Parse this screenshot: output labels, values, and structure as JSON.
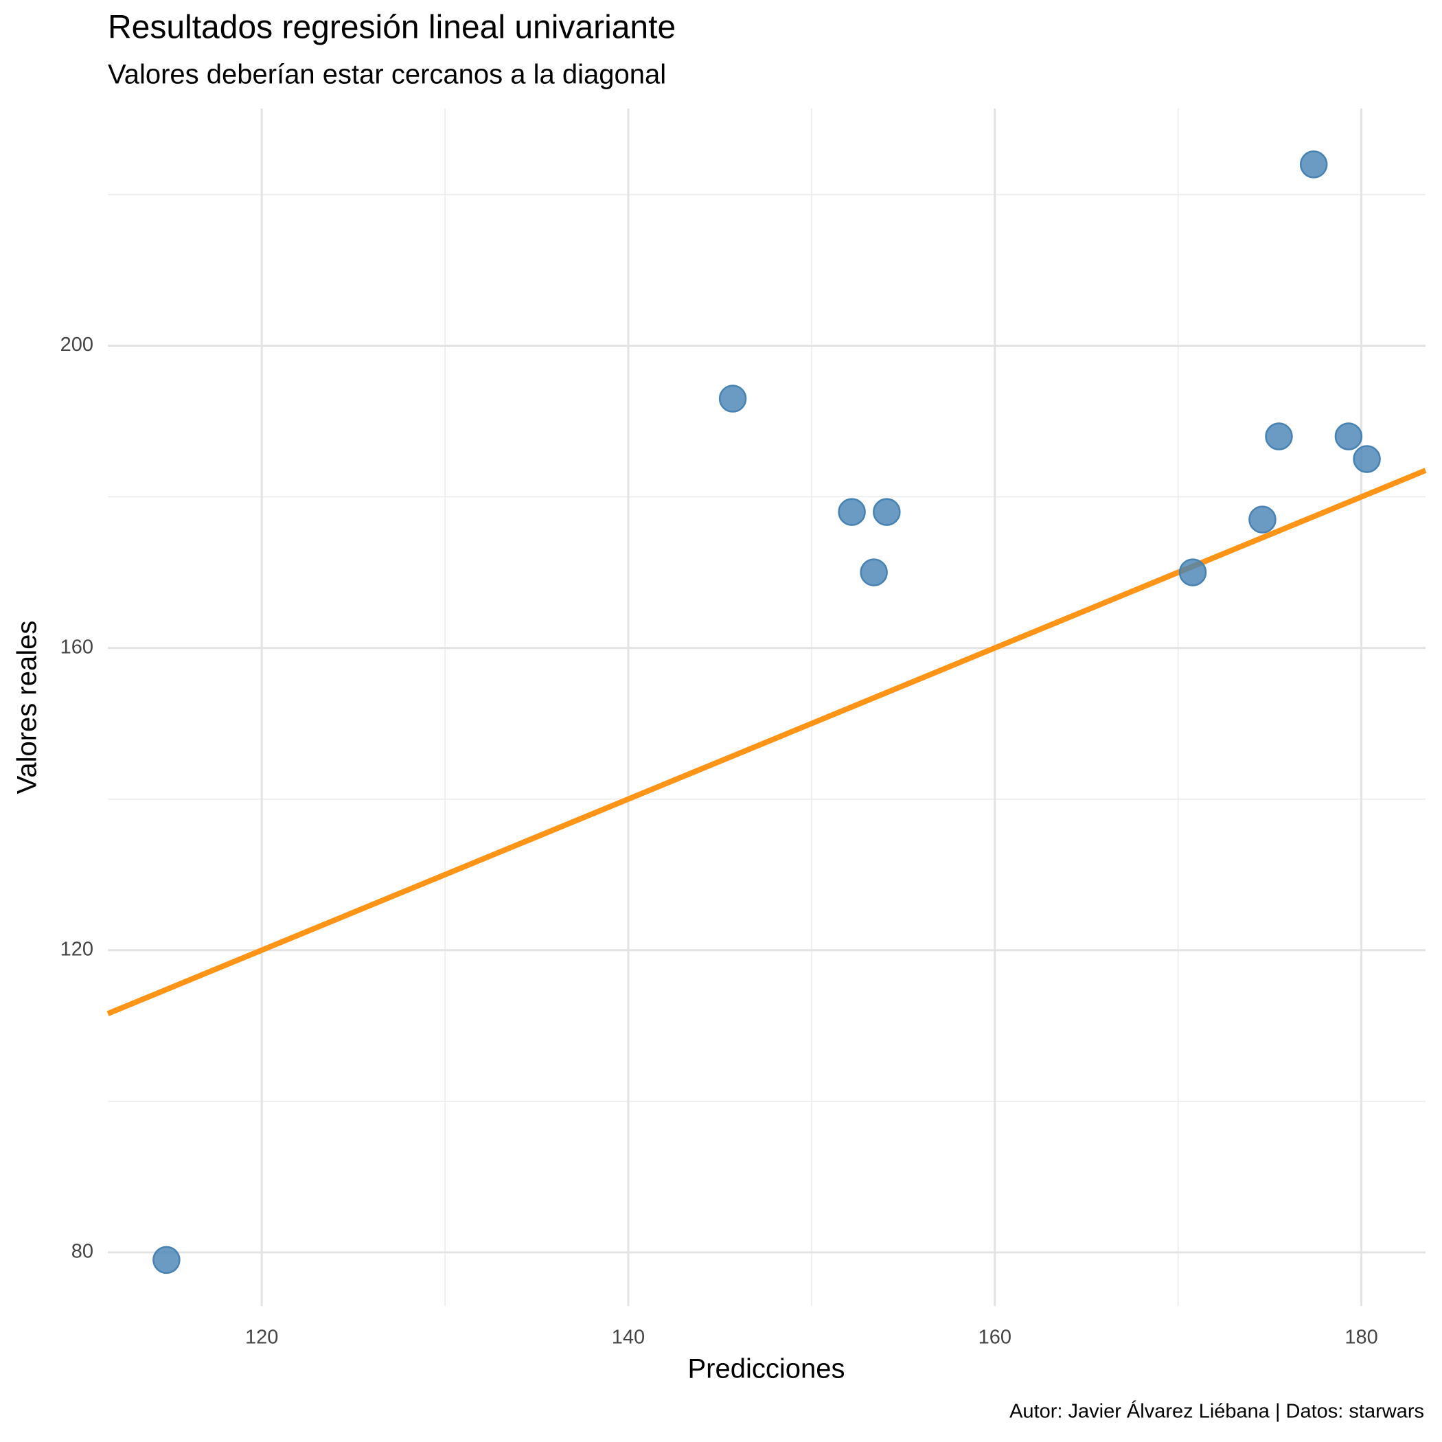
{
  "chart_data": {
    "type": "scatter",
    "title": "Resultados regresión lineal univariante",
    "subtitle": "Valores deberían estar cercanos a la diagonal",
    "x_label": "Predicciones",
    "y_label": "Valores reales",
    "caption": "Autor: Javier Álvarez Liébana | Datos: starwars",
    "x": [
      114.8,
      145.7,
      152.2,
      154.1,
      153.4,
      170.8,
      174.6,
      175.5,
      179.3,
      180.3,
      177.4
    ],
    "values": [
      79,
      193,
      178,
      178,
      170,
      170,
      177,
      188,
      188,
      185,
      224
    ],
    "color": "#4682b4",
    "diagonal_color": "#ff9416",
    "xlim": [
      111.6,
      183.5
    ],
    "ylim": [
      72.9,
      231.4
    ],
    "xticks": [
      120,
      140,
      160,
      180
    ],
    "yticks": [
      80,
      120,
      160,
      200
    ],
    "xminor": [
      130,
      150,
      170
    ],
    "yminor": [
      100,
      140,
      180,
      220
    ],
    "grid": true
  }
}
